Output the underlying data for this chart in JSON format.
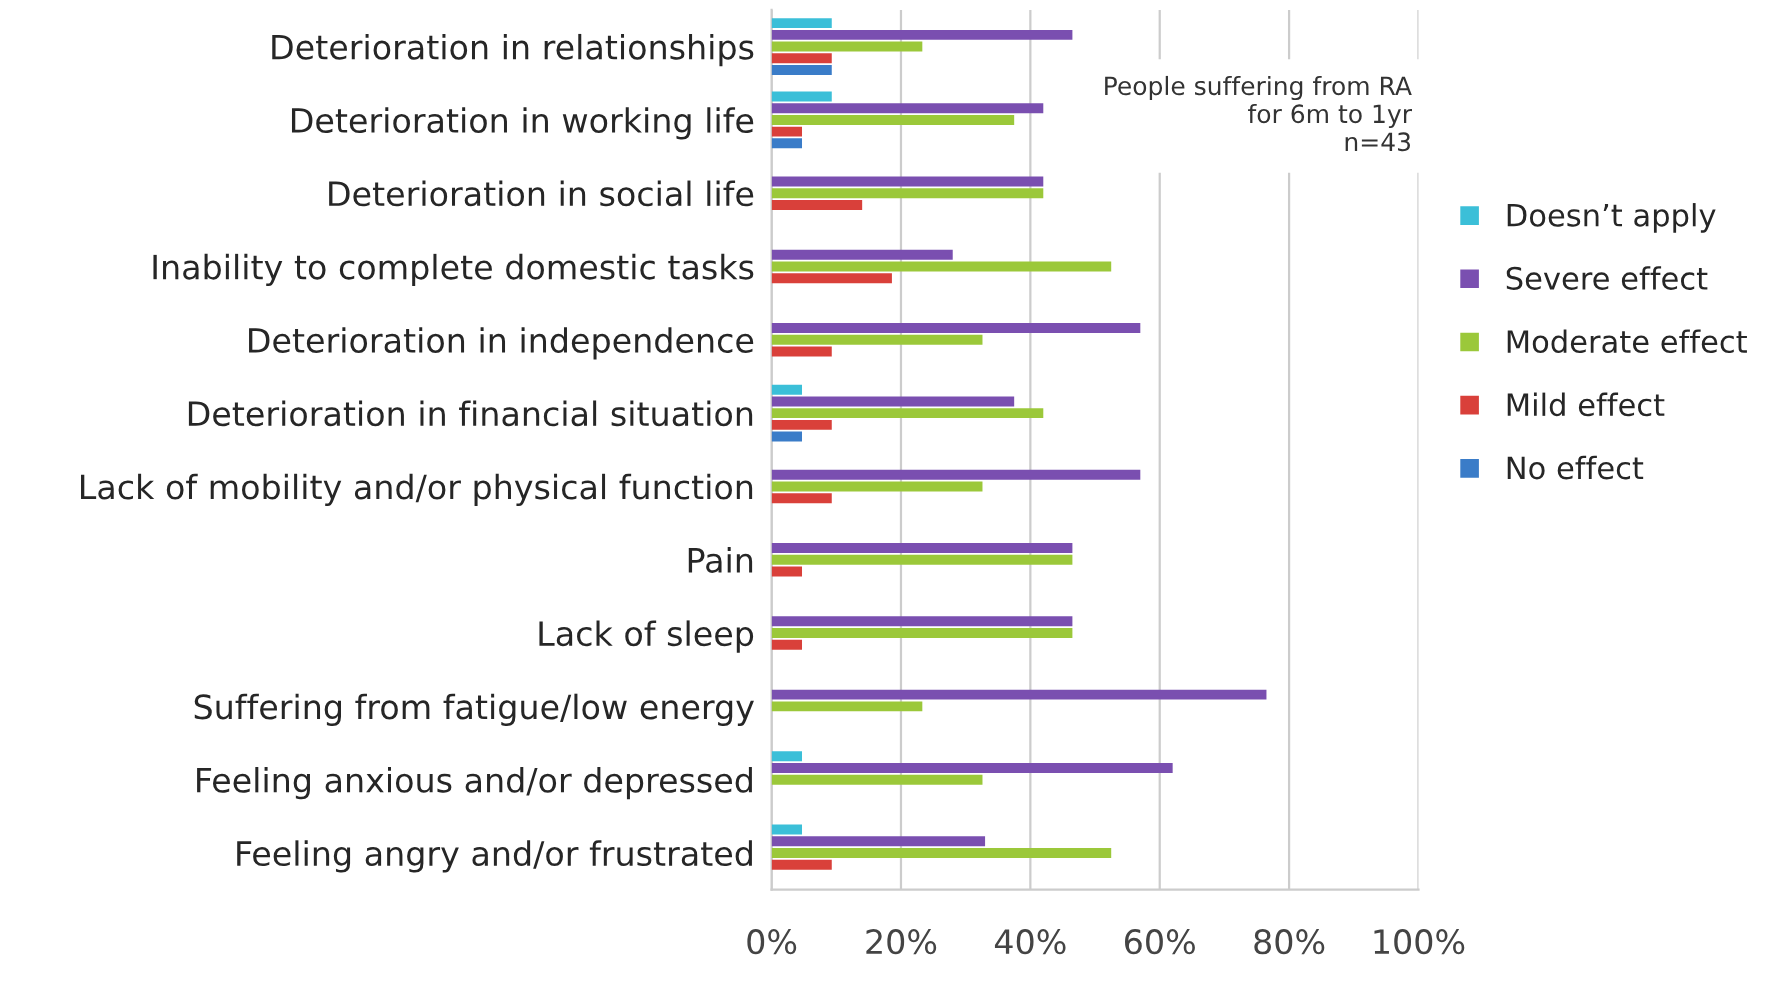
{
  "chart_data": {
    "type": "bar",
    "orientation": "horizontal",
    "categories": [
      "Deterioration in relationships",
      "Deterioration in working life",
      "Deterioration in social life",
      "Inability to complete domestic tasks",
      "Deterioration in independence",
      "Deterioration in financial situation",
      "Lack of mobility and/or physical function",
      "Pain",
      "Lack of sleep",
      "Suffering from fatigue/low energy",
      "Feeling anxious and/or depressed",
      "Feeling angry and/or frustrated"
    ],
    "series": [
      {
        "name": "Doesn’t apply",
        "color": "#3bbfd8",
        "values": [
          9.3,
          9.3,
          0,
          0,
          0,
          4.7,
          0,
          0,
          0,
          0,
          4.7,
          4.7
        ]
      },
      {
        "name": "Severe effect",
        "color": "#7a4fb0",
        "values": [
          46.5,
          42,
          42,
          28,
          57,
          37.5,
          57,
          46.5,
          46.5,
          76.5,
          62,
          33
        ]
      },
      {
        "name": "Moderate effect",
        "color": "#9bc83a",
        "values": [
          23.3,
          37.5,
          42,
          52.5,
          32.6,
          42,
          32.6,
          46.5,
          46.5,
          23.3,
          32.6,
          52.5
        ]
      },
      {
        "name": "Mild effect",
        "color": "#d9403a",
        "values": [
          9.3,
          4.7,
          14,
          18.6,
          9.3,
          9.3,
          9.3,
          4.7,
          4.7,
          0,
          0,
          9.3
        ]
      },
      {
        "name": "No effect",
        "color": "#3a7cc8",
        "values": [
          9.3,
          4.7,
          0,
          0,
          0,
          4.7,
          0,
          0,
          0,
          0,
          0,
          0
        ]
      }
    ],
    "xlim": [
      0,
      100
    ],
    "xticks": [
      {
        "value": 0,
        "label": "0%"
      },
      {
        "value": 20,
        "label": "20%"
      },
      {
        "value": 40,
        "label": "40%"
      },
      {
        "value": 60,
        "label": "60%"
      },
      {
        "value": 80,
        "label": "80%"
      },
      {
        "value": 100,
        "label": "100%"
      }
    ],
    "grid": "x",
    "legend": "right",
    "annotations": [
      "People suffering from RA\nfor 6m to 1yr\nn=43"
    ]
  }
}
